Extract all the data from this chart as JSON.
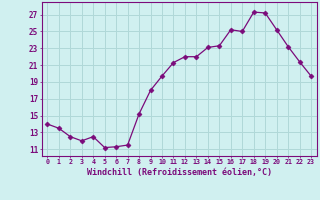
{
  "x": [
    0,
    1,
    2,
    3,
    4,
    5,
    6,
    7,
    8,
    9,
    10,
    11,
    12,
    13,
    14,
    15,
    16,
    17,
    18,
    19,
    20,
    21,
    22,
    23
  ],
  "y": [
    14.0,
    13.5,
    12.5,
    12.0,
    12.5,
    11.2,
    11.3,
    11.5,
    15.2,
    18.0,
    19.7,
    21.3,
    22.0,
    22.0,
    23.1,
    23.3,
    25.2,
    25.0,
    27.3,
    27.2,
    25.2,
    23.2,
    21.4,
    19.7
  ],
  "line_color": "#7B0B7B",
  "marker": "D",
  "marker_size": 2.5,
  "bg_color": "#d0f0f0",
  "grid_color": "#b0d8d8",
  "xlabel": "Windchill (Refroidissement éolien,°C)",
  "ylabel_ticks": [
    11,
    13,
    15,
    17,
    19,
    21,
    23,
    25,
    27
  ],
  "xtick_labels": [
    "0",
    "1",
    "2",
    "3",
    "4",
    "5",
    "6",
    "7",
    "8",
    "9",
    "10",
    "11",
    "12",
    "13",
    "14",
    "15",
    "16",
    "17",
    "18",
    "19",
    "20",
    "21",
    "22",
    "23"
  ],
  "ylim": [
    10.2,
    28.5
  ],
  "xlim": [
    -0.5,
    23.5
  ],
  "axis_color": "#7B0B7B",
  "tick_color": "#7B0B7B",
  "label_color": "#7B0B7B",
  "spine_color": "#7B0B7B"
}
